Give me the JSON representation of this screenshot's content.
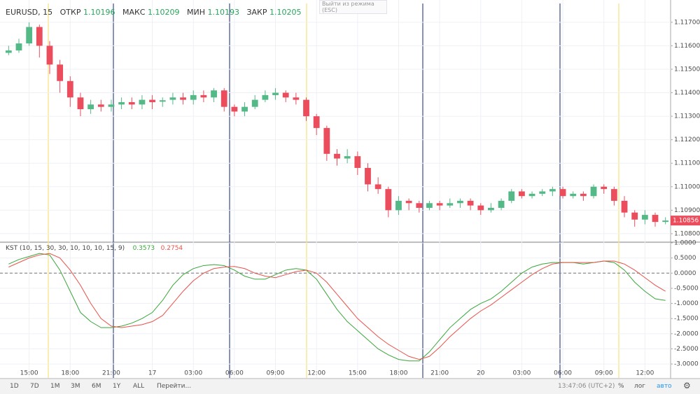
{
  "header": {
    "symbol": "EURUSD, 15",
    "open_label": "ОТКР",
    "open": "1.10196",
    "high_label": "МАКС",
    "high": "1.10209",
    "low_label": "МИН",
    "low": "1.10193",
    "close_label": "ЗАКР",
    "close": "1.10205",
    "tooltip": "Выйти из режима",
    "tooltip_key": "(ESC)"
  },
  "chart_data": [
    {
      "type": "candlestick",
      "categories": [
        null,
        null,
        "15:00",
        null,
        null,
        null,
        "18:00",
        null,
        null,
        null,
        "21:00",
        null,
        null,
        null,
        "17",
        null,
        null,
        null,
        "03:00",
        null,
        null,
        null,
        "06:00",
        null,
        null,
        null,
        "09:00",
        null,
        null,
        null,
        "12:00",
        null,
        null,
        null,
        "15:00",
        null,
        null,
        null,
        "18:00",
        null,
        null,
        null,
        "21:00",
        null,
        null,
        null,
        "20",
        null,
        null,
        null,
        "03:00",
        null,
        null,
        null,
        "06:00",
        null,
        null,
        null,
        "09:00",
        null,
        null,
        null,
        "12:00",
        null,
        null
      ],
      "open": [
        1.1157,
        1.1158,
        1.1161,
        1.1168,
        1.116,
        1.1152,
        1.1145,
        1.1138,
        1.1133,
        1.1135,
        1.1134,
        1.1135,
        1.1136,
        1.1135,
        1.1137,
        1.11362,
        1.1137,
        1.1138,
        1.1137,
        1.1139,
        1.1138,
        1.1141,
        1.1134,
        1.1132,
        1.1134,
        1.1137,
        1.1139,
        1.114,
        1.1138,
        1.1137,
        1.113,
        1.1125,
        1.1114,
        1.1112,
        1.1113,
        1.1108,
        1.1101,
        1.1099,
        1.109,
        1.1094,
        1.1093,
        1.1091,
        1.1093,
        1.1092,
        1.1093,
        1.1094,
        1.1092,
        1.109,
        1.1091,
        1.1094,
        1.1098,
        1.1096,
        1.1097,
        1.1098,
        1.1099,
        1.1096,
        1.1097,
        1.1096,
        1.11,
        1.1099,
        1.1094,
        1.1089,
        1.1086,
        1.1088,
        1.1085
      ],
      "high": [
        1.116,
        1.1163,
        1.117,
        1.1169,
        1.1162,
        1.1154,
        1.1147,
        1.114,
        1.1137,
        1.1137,
        1.1137,
        1.1138,
        1.1138,
        1.1139,
        1.1139,
        1.1138,
        1.114,
        1.114,
        1.1141,
        1.1141,
        1.1142,
        1.1142,
        1.1135,
        1.1136,
        1.1139,
        1.1141,
        1.1142,
        1.1141,
        1.114,
        1.1138,
        1.1131,
        1.1126,
        1.1116,
        1.1116,
        1.1115,
        1.111,
        1.1104,
        1.11,
        1.1096,
        1.1095,
        1.1094,
        1.1094,
        1.1094,
        1.1095,
        1.1095,
        1.1095,
        1.1093,
        1.1093,
        1.1095,
        1.1099,
        1.1099,
        1.1098,
        1.1099,
        1.11,
        1.11,
        1.1098,
        1.1098,
        1.1101,
        1.1101,
        1.11,
        1.1096,
        1.109,
        1.109,
        1.1089,
        1.1087
      ],
      "low": [
        1.1156,
        1.1157,
        1.116,
        1.1155,
        1.1148,
        1.114,
        1.1134,
        1.113,
        1.1131,
        1.1132,
        1.1132,
        1.1133,
        1.1133,
        1.1133,
        1.1133,
        1.1134,
        1.1135,
        1.1135,
        1.1135,
        1.1136,
        1.1136,
        1.1132,
        1.113,
        1.113,
        1.1133,
        1.1136,
        1.1137,
        1.1136,
        1.1135,
        1.1128,
        1.1122,
        1.1111,
        1.1109,
        1.111,
        1.1105,
        1.1098,
        1.1097,
        1.1087,
        1.1088,
        1.109,
        1.1089,
        1.109,
        1.109,
        1.1091,
        1.1091,
        1.109,
        1.1088,
        1.1089,
        1.109,
        1.1093,
        1.1095,
        1.1095,
        1.1096,
        1.1096,
        1.1095,
        1.1095,
        1.1094,
        1.1095,
        1.1097,
        1.1092,
        1.1087,
        1.1083,
        1.1084,
        1.1083,
        1.1084
      ],
      "close": [
        1.1158,
        1.1161,
        1.1168,
        1.116,
        1.1152,
        1.1145,
        1.1138,
        1.1133,
        1.1135,
        1.1134,
        1.1135,
        1.1136,
        1.1135,
        1.1137,
        1.1136,
        1.11368,
        1.1138,
        1.1137,
        1.1139,
        1.1138,
        1.1141,
        1.1134,
        1.1132,
        1.1134,
        1.1137,
        1.1139,
        1.114,
        1.1138,
        1.1137,
        1.113,
        1.1125,
        1.1114,
        1.1112,
        1.1113,
        1.1108,
        1.1101,
        1.1099,
        1.109,
        1.1094,
        1.1093,
        1.1091,
        1.1093,
        1.1092,
        1.1093,
        1.1094,
        1.1092,
        1.109,
        1.1091,
        1.1094,
        1.1098,
        1.1096,
        1.1097,
        1.1098,
        1.1099,
        1.1096,
        1.1097,
        1.1096,
        1.11,
        1.1099,
        1.1094,
        1.1089,
        1.1086,
        1.1088,
        1.1085,
        1.10856
      ],
      "last_label": "1.10856",
      "up_color": "#53b987",
      "down_color": "#eb4d5c",
      "ylim": [
        1.10767,
        1.1178
      ],
      "yticks": [
        {
          "value": 1.108,
          "label": "1.10800"
        },
        {
          "value": 1.109,
          "label": "1.10900"
        },
        {
          "value": 1.11,
          "label": "1.11000"
        },
        {
          "value": 1.111,
          "label": "1.11100"
        },
        {
          "value": 1.112,
          "label": "1.11200"
        },
        {
          "value": 1.113,
          "label": "1.11300"
        },
        {
          "value": 1.114,
          "label": "1.11400"
        },
        {
          "value": 1.115,
          "label": "1.11500"
        },
        {
          "value": 1.116,
          "label": "1.11600"
        },
        {
          "value": 1.117,
          "label": "1.11700"
        }
      ],
      "grid": true
    },
    {
      "type": "line",
      "title": "KST (10, 15, 30, 30, 10, 10, 10, 15, 9)",
      "series": [
        {
          "name": "0.3573",
          "color": "#3aa63a",
          "values": [
            0.3,
            0.45,
            0.55,
            0.65,
            0.6,
            0.1,
            -0.6,
            -1.3,
            -1.6,
            -1.8,
            -1.8,
            -1.75,
            -1.65,
            -1.5,
            -1.3,
            -0.9,
            -0.4,
            -0.05,
            0.15,
            0.25,
            0.28,
            0.25,
            0.1,
            -0.1,
            -0.2,
            -0.2,
            -0.05,
            0.1,
            0.15,
            0.1,
            -0.2,
            -0.7,
            -1.2,
            -1.6,
            -1.9,
            -2.2,
            -2.5,
            -2.7,
            -2.85,
            -2.9,
            -2.9,
            -2.6,
            -2.2,
            -1.8,
            -1.5,
            -1.2,
            -1.0,
            -0.85,
            -0.6,
            -0.3,
            0.0,
            0.2,
            0.3,
            0.35,
            0.35,
            0.35,
            0.3,
            0.35,
            0.4,
            0.35,
            0.1,
            -0.3,
            -0.6,
            -0.85,
            -0.9
          ]
        },
        {
          "name": "0.2754",
          "color": "#e8524a",
          "values": [
            0.2,
            0.35,
            0.5,
            0.6,
            0.65,
            0.5,
            0.1,
            -0.4,
            -1.0,
            -1.5,
            -1.75,
            -1.8,
            -1.75,
            -1.7,
            -1.6,
            -1.4,
            -1.0,
            -0.6,
            -0.25,
            0.0,
            0.15,
            0.2,
            0.22,
            0.15,
            0.0,
            -0.1,
            -0.15,
            -0.05,
            0.05,
            0.1,
            0.0,
            -0.3,
            -0.7,
            -1.1,
            -1.5,
            -1.8,
            -2.1,
            -2.35,
            -2.55,
            -2.75,
            -2.85,
            -2.75,
            -2.45,
            -2.1,
            -1.8,
            -1.5,
            -1.25,
            -1.05,
            -0.8,
            -0.55,
            -0.3,
            -0.05,
            0.15,
            0.3,
            0.35,
            0.35,
            0.35,
            0.35,
            0.4,
            0.4,
            0.3,
            0.1,
            -0.15,
            -0.4,
            -0.6
          ]
        }
      ],
      "ylim": [
        -3.46,
        1.0
      ],
      "yticks": [
        {
          "value": 1.0,
          "label": "1.0000"
        },
        {
          "value": 0.5,
          "label": "0.5000"
        },
        {
          "value": 0,
          "label": "0.0000"
        },
        {
          "value": -0.5,
          "label": "-0.5000"
        },
        {
          "value": -1.0,
          "label": "-1.0000"
        },
        {
          "value": -1.5,
          "label": "-1.5000"
        },
        {
          "value": -2.0,
          "label": "-2.0000"
        },
        {
          "value": -2.5,
          "label": "-2.5000"
        },
        {
          "value": -3.0,
          "label": "-3.0000"
        }
      ],
      "grid": true
    }
  ],
  "toolbar": {
    "ranges": [
      "1D",
      "7D",
      "1M",
      "3M",
      "6M",
      "1Y",
      "ALL"
    ],
    "goto": "Перейти...",
    "clock": "13:47:06 (UTC+2)",
    "percent": "%",
    "log": "лог",
    "auto": "авто"
  }
}
